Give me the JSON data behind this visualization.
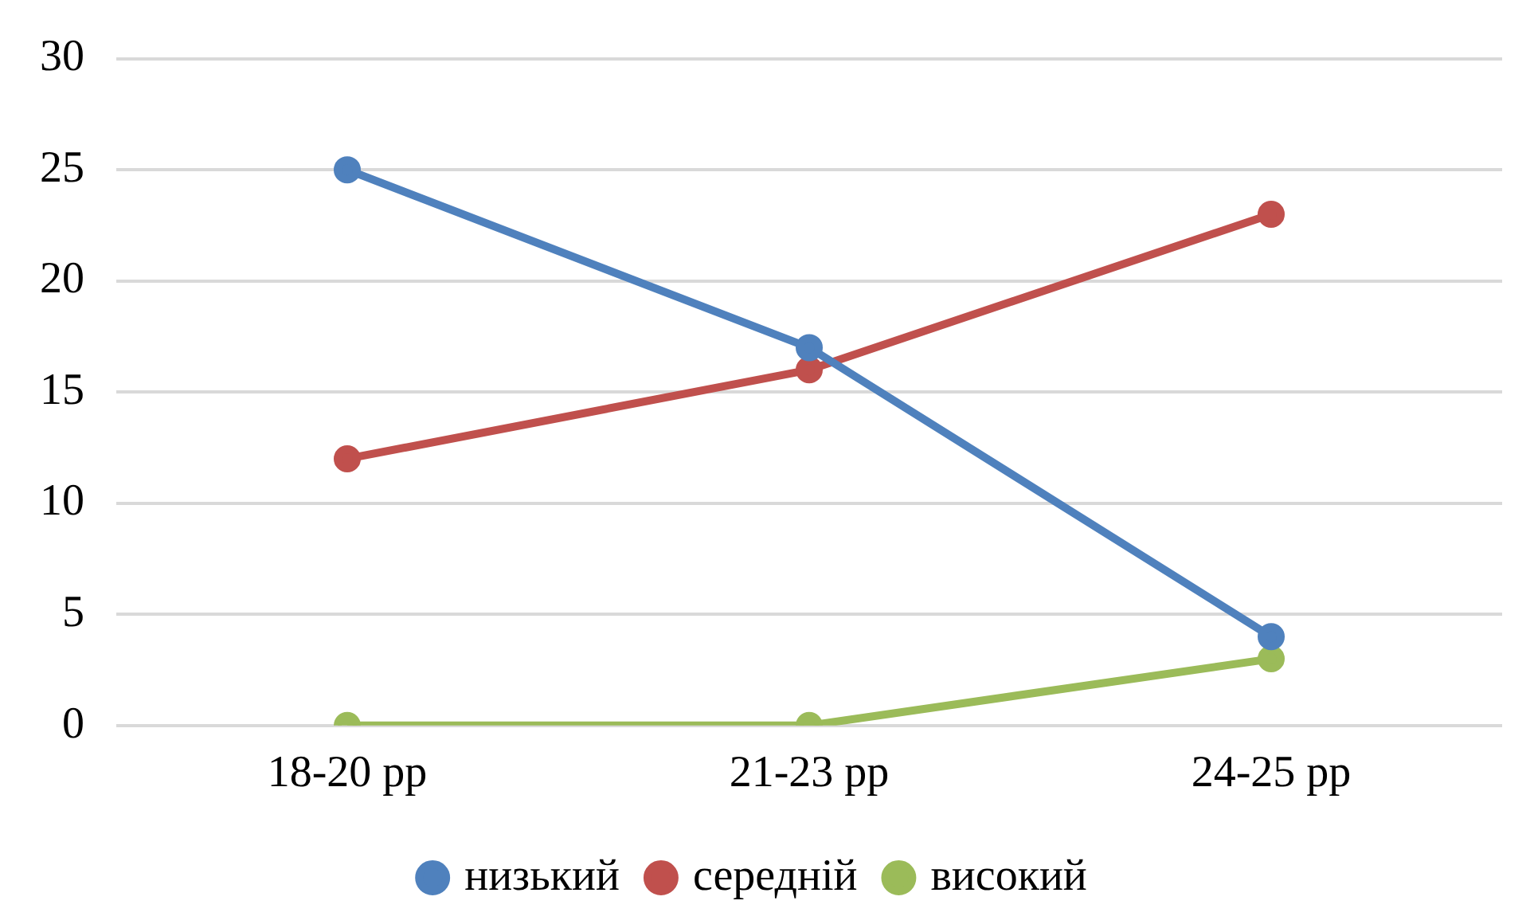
{
  "chart_data": {
    "type": "line",
    "categories": [
      "18-20 рр",
      "21-23 рр",
      "24-25 рр"
    ],
    "series": [
      {
        "name": "низький",
        "color": "#4f81bd",
        "values": [
          25,
          17,
          4
        ]
      },
      {
        "name": "середній",
        "color": "#c0504d",
        "values": [
          12,
          16,
          23
        ]
      },
      {
        "name": "високий",
        "color": "#9bbb59",
        "values": [
          0,
          0,
          3
        ]
      }
    ],
    "ylim": [
      0,
      30
    ],
    "yticks": [
      0,
      5,
      10,
      15,
      20,
      25,
      30
    ],
    "grid": "y",
    "legend": "bottom",
    "marker": "circle",
    "line_style": "solid"
  }
}
